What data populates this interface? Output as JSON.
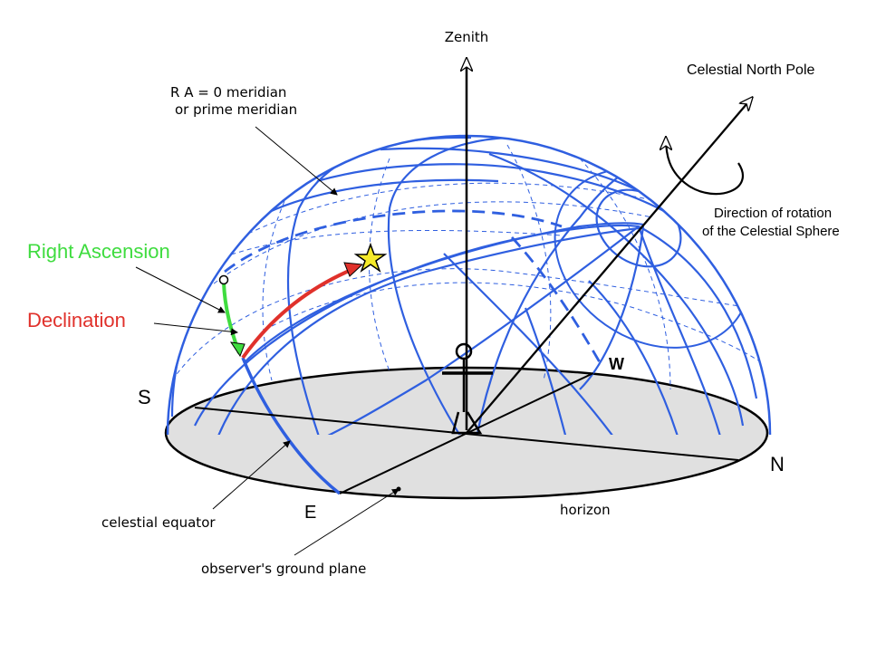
{
  "labels": {
    "zenith": "Zenith",
    "celestial_north_pole": "Celestial North Pole",
    "ra_meridian_line1": "R A = 0  meridian",
    "ra_meridian_line2": "or prime meridian",
    "rotation_line1": "Direction of rotation",
    "rotation_line2": "of the Celestial Sphere",
    "right_ascension": "Right Ascension",
    "declination": "Declination",
    "south": "S",
    "north": "N",
    "east": "E",
    "west": "W",
    "celestial_equator": "celestial equator",
    "horizon": "horizon",
    "ground_plane": "observer's ground plane"
  },
  "colors": {
    "grid": "#2f5fe0",
    "right_ascension": "#3fdc3f",
    "declination": "#e0312b",
    "ground": "#e0e0e0",
    "star": "#f5ea2a"
  }
}
